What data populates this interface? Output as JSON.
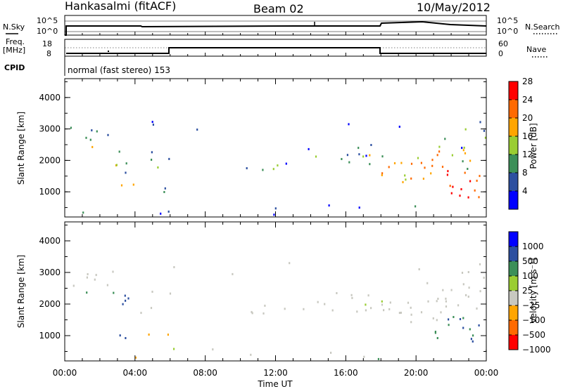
{
  "header": {
    "station": "Hankasalmi (fitACF)",
    "beam": "Beam 02",
    "date": "10/May/2012"
  },
  "control_panels": {
    "nsky_label": "N.Sky",
    "nsearch_label": "N.Search",
    "noise_ticks": [
      "10^5",
      "10^0"
    ],
    "freq_label_1": "Freq.",
    "freq_label_2": "[MHz]",
    "freq_ticks": [
      "18",
      "8"
    ],
    "nave_label": "Nave",
    "nave_ticks": [
      "60",
      "0"
    ],
    "cpid_label": "CPID",
    "cpid_text": "normal (fast stereo) 153"
  },
  "colors": {
    "power_scale": [
      "#0000ff",
      "#2c4fa0",
      "#3c8f58",
      "#9acd32",
      "#ffa500",
      "#ff6a00",
      "#ff0000"
    ],
    "velocity_scale": [
      "#ff0000",
      "#ff6a00",
      "#ffa500",
      "#c8c8c0",
      "#9acd32",
      "#3c8f58",
      "#2c4fa0",
      "#0000ff"
    ]
  },
  "chart_data": [
    {
      "type": "heatmap",
      "panel": "power",
      "x": [
        "00:00",
        "04:00",
        "08:00",
        "12:00",
        "16:00",
        "20:00",
        "00:00"
      ],
      "xlabel": "Time UT",
      "ylabel": "Slant Range [km]",
      "yticks": [
        1000,
        2000,
        3000,
        4000
      ],
      "ylim": [
        200,
        4600
      ],
      "colorbar": {
        "label": "Power [dB]",
        "ticks": [
          "4",
          "8",
          "12",
          "16",
          "20",
          "24",
          "28"
        ],
        "range": [
          0,
          30
        ]
      }
    },
    {
      "type": "heatmap",
      "panel": "velocity",
      "x": [
        "00:00",
        "04:00",
        "08:00",
        "12:00",
        "16:00",
        "20:00",
        "00:00"
      ],
      "xlabel": "Time UT",
      "ylabel": "Slant Range [km]",
      "yticks": [
        1000,
        2000,
        3000,
        4000
      ],
      "ylim": [
        200,
        4600
      ],
      "colorbar": {
        "label": "Velocity [m s⁻¹]",
        "ticks": [
          "1000",
          "500",
          "100",
          "25",
          "−25",
          "−100",
          "−500",
          "−1000"
        ],
        "range": [
          -1000,
          1000
        ]
      }
    }
  ]
}
